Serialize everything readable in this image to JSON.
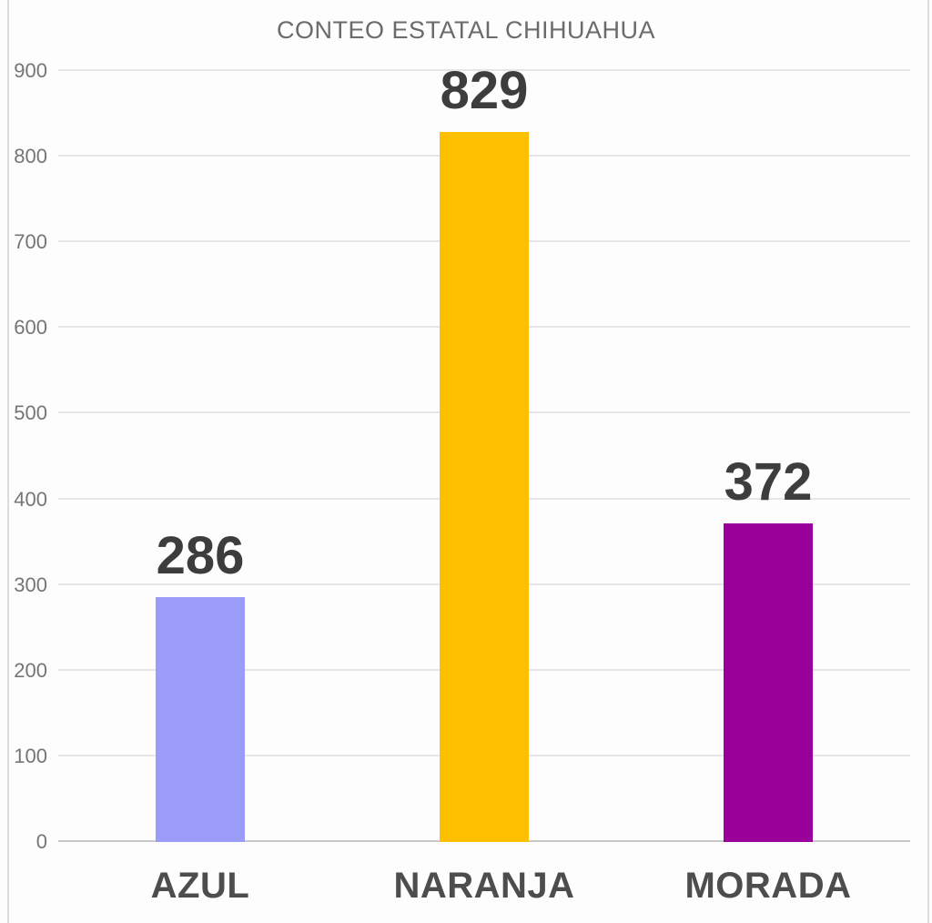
{
  "chart_data": {
    "type": "bar",
    "title": "CONTEO ESTATAL CHIHUAHUA",
    "categories": [
      "AZUL",
      "NARANJA",
      "MORADA"
    ],
    "values": [
      286,
      829,
      372
    ],
    "bar_colors": [
      "#9b9bfa",
      "#febf01",
      "#9a019b"
    ],
    "ylim": [
      0,
      900
    ],
    "yticks": [
      0,
      100,
      200,
      300,
      400,
      500,
      600,
      700,
      800,
      900
    ],
    "grid": true,
    "legend_position": "none",
    "xlabel": "",
    "ylabel": ""
  },
  "colors": {
    "title": "#6b6b6b",
    "tick_label": "#757575",
    "value_label": "#3d3d3d",
    "category_label": "#4d4d4d",
    "gridline": "#e6e6e6",
    "baseline": "#c9c9c9",
    "background": "#fdfdfd",
    "frame_edge": "#dcdcdc"
  }
}
